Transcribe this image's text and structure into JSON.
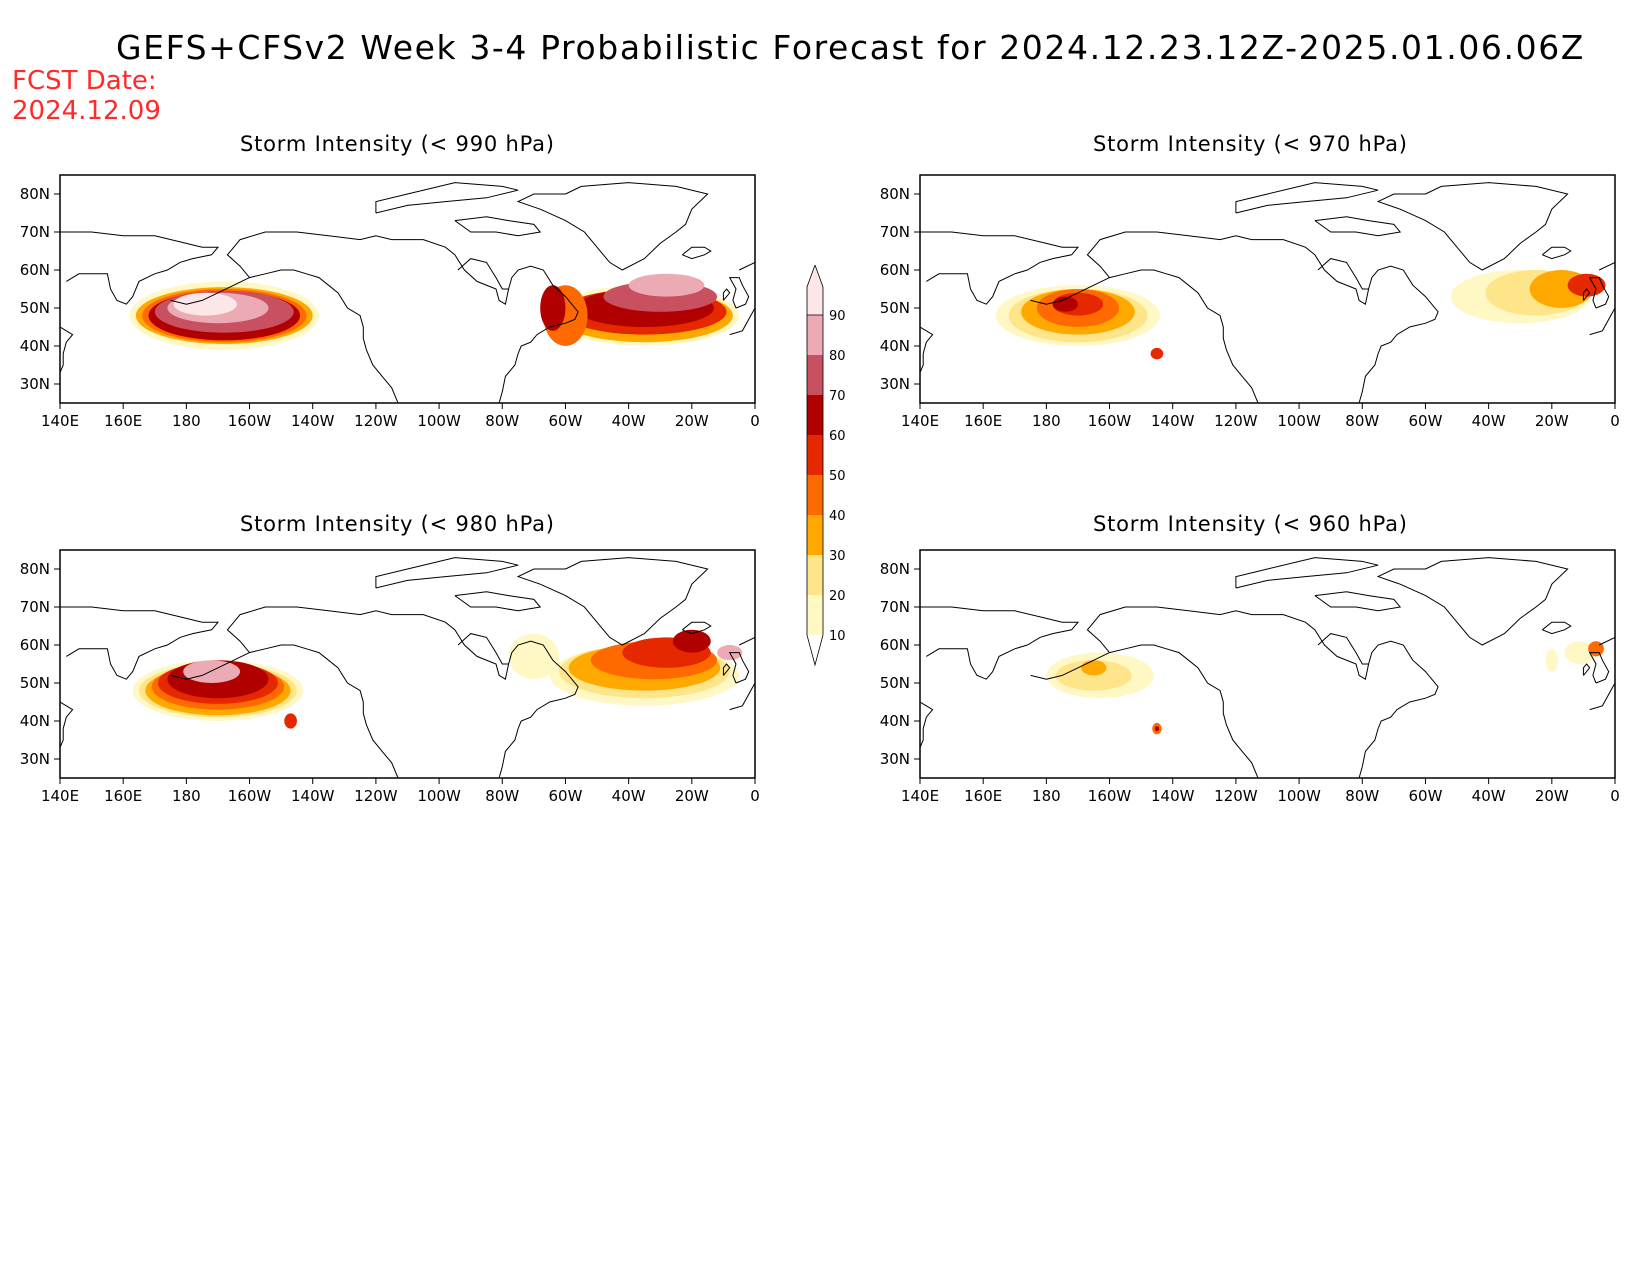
{
  "header": {
    "title": "GEFS+CFSv2 Week 3-4 Probabilistic Forecast for 2024.12.23.12Z-2025.01.06.06Z",
    "fcst_label": "FCST Date:",
    "fcst_date": "2024.12.09"
  },
  "panels": [
    {
      "title": "Storm Intensity (< 990 hPa)"
    },
    {
      "title": "Storm Intensity (< 970 hPa)"
    },
    {
      "title": "Storm Intensity (< 980 hPa)"
    },
    {
      "title": "Storm Intensity (< 960 hPa)"
    }
  ],
  "axes": {
    "x_ticks": [
      "140E",
      "160E",
      "180",
      "160W",
      "140W",
      "120W",
      "100W",
      "80W",
      "60W",
      "40W",
      "20W",
      "0"
    ],
    "y_ticks": [
      "80N",
      "70N",
      "60N",
      "50N",
      "40N",
      "30N"
    ],
    "lon_range_deg_east": [
      140,
      360
    ],
    "lat_range": [
      25,
      85
    ]
  },
  "colorbar": {
    "levels": [
      "10",
      "20",
      "30",
      "40",
      "50",
      "60",
      "70",
      "80",
      "90"
    ],
    "colors": [
      "#fff8c4",
      "#ffe58a",
      "#ffa800",
      "#ff6a00",
      "#e62800",
      "#b00000",
      "#c85060",
      "#ecaab4",
      "#fde6e8"
    ]
  }
}
